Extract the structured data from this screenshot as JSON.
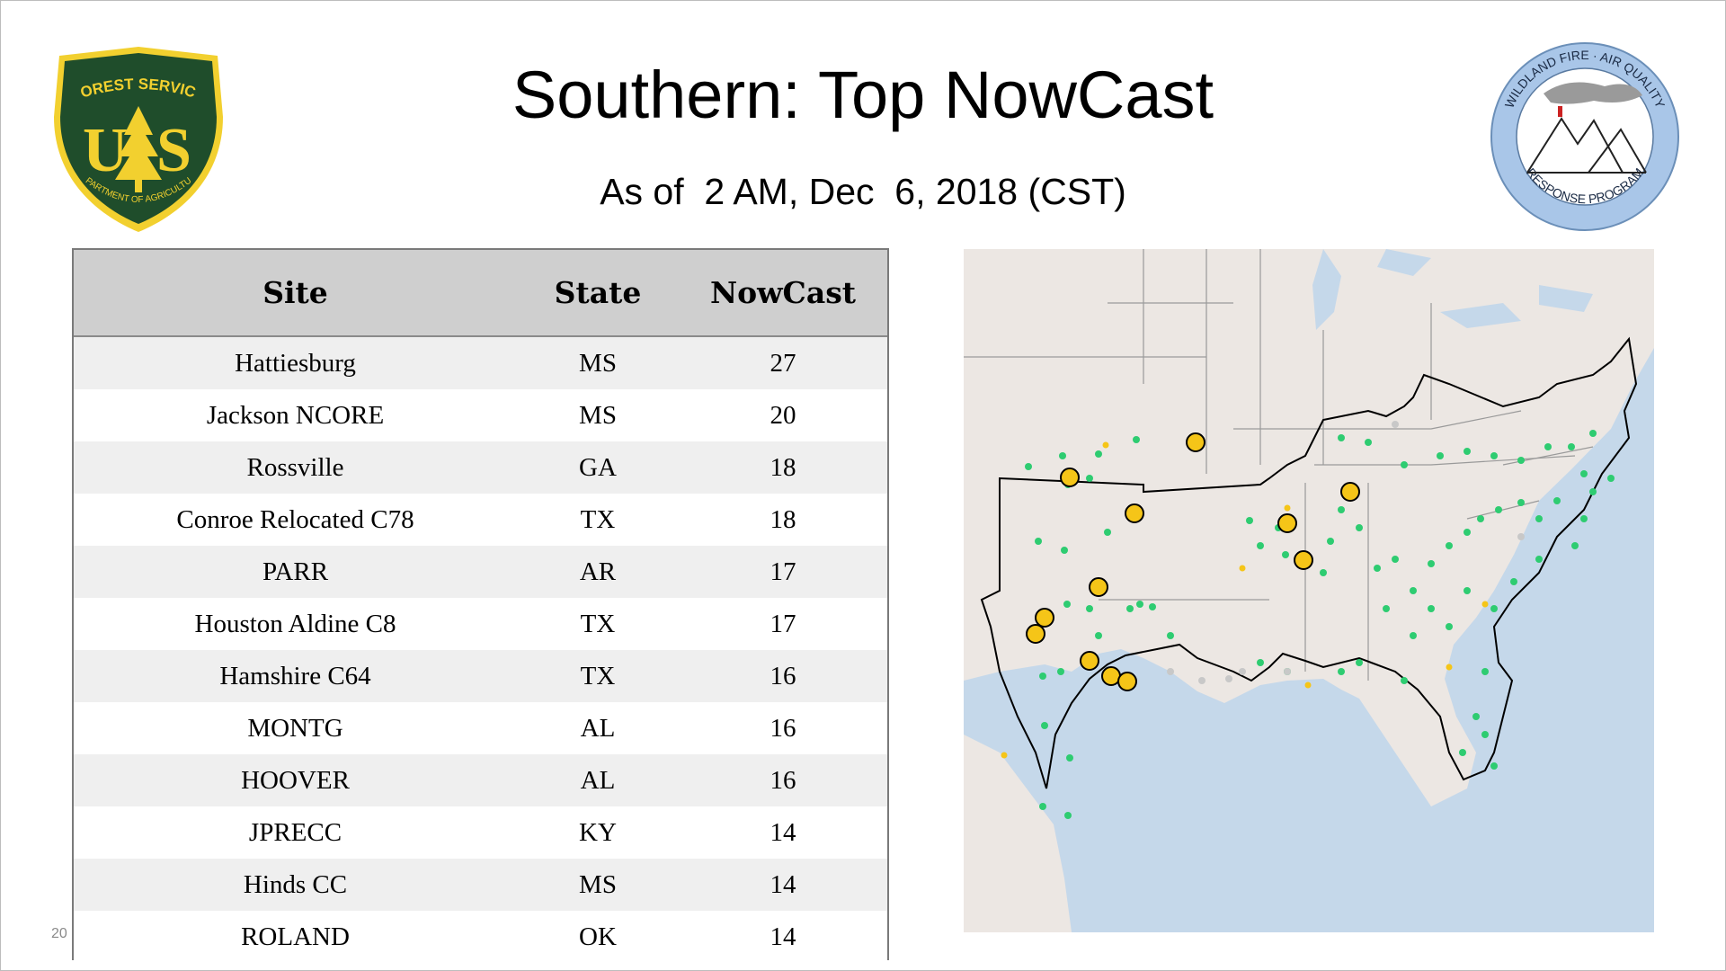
{
  "title": "Southern: Top NowCast",
  "subtitle": "As of  2 AM, Dec  6, 2018 (CST)",
  "page_number": "20",
  "logos": {
    "forest_service": {
      "top_text": "FOREST SERVICE",
      "letters": "US",
      "bottom_text": "DEPARTMENT OF AGRICULTURE",
      "color": "#1f4d2b",
      "accent": "#f2d02f"
    },
    "wildland_fire": {
      "top_text": "WILDLAND FIRE · AIR QUALITY",
      "bottom_text": "RESPONSE PROGRAM",
      "color": "#a9c6e8"
    }
  },
  "table": {
    "headers": {
      "site": "Site",
      "state": "State",
      "nowcast": "NowCast"
    },
    "rows": [
      {
        "site": "Hattiesburg",
        "state": "MS",
        "nowcast": "27"
      },
      {
        "site": "Jackson NCORE",
        "state": "MS",
        "nowcast": "20"
      },
      {
        "site": "Rossville",
        "state": "GA",
        "nowcast": "18"
      },
      {
        "site": "Conroe Relocated C78",
        "state": "TX",
        "nowcast": "18"
      },
      {
        "site": "PARR",
        "state": "AR",
        "nowcast": "17"
      },
      {
        "site": "Houston Aldine C8",
        "state": "TX",
        "nowcast": "17"
      },
      {
        "site": "Hamshire C64",
        "state": "TX",
        "nowcast": "16"
      },
      {
        "site": "MONTG",
        "state": "AL",
        "nowcast": "16"
      },
      {
        "site": "HOOVER",
        "state": "AL",
        "nowcast": "16"
      },
      {
        "site": "JPRECC",
        "state": "KY",
        "nowcast": "14"
      },
      {
        "site": "Hinds CC",
        "state": "MS",
        "nowcast": "14"
      },
      {
        "site": "ROLAND",
        "state": "OK",
        "nowcast": "14"
      }
    ]
  },
  "map": {
    "colors": {
      "land": "#ece7e3",
      "water": "#c5d8ea",
      "good": "#2ecc71",
      "moderate": "#f5c518",
      "no_data": "#c8c8c8",
      "region_outline": "#000000",
      "state_lines": "#9a9a9a"
    }
  }
}
